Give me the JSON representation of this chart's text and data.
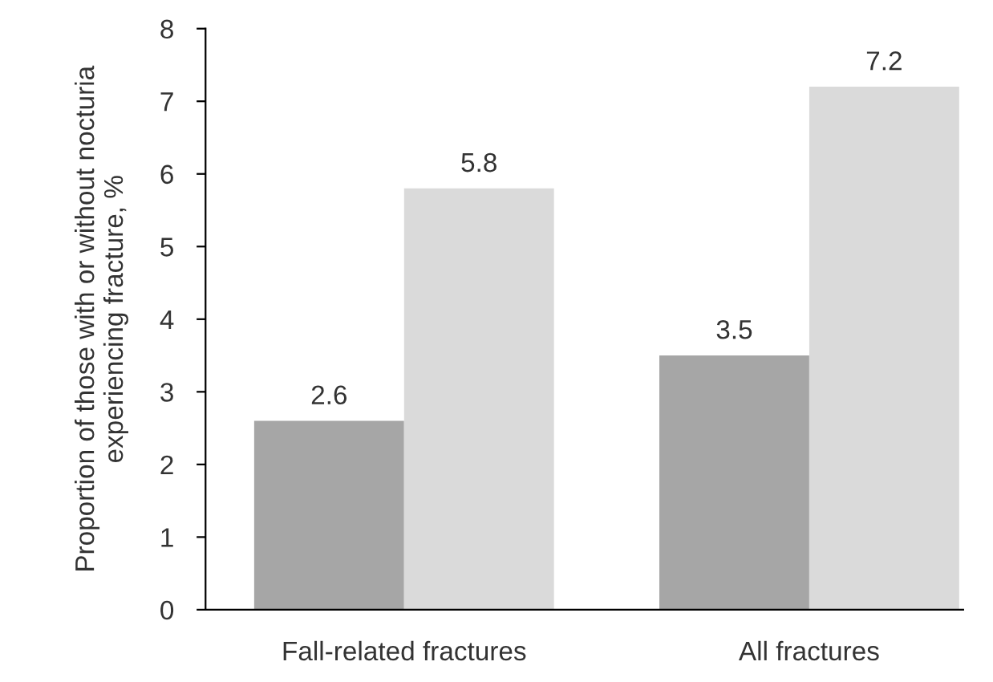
{
  "chart_data": {
    "type": "bar",
    "ylabel": "Proportion of those with or without nocturia\nexperiencing fracture, %",
    "categories": [
      "Fall-related fractures",
      "All fractures"
    ],
    "series": [
      {
        "color": "#a6a6a6",
        "values": [
          2.6,
          3.5
        ]
      },
      {
        "color": "#dadada",
        "values": [
          5.8,
          7.2
        ]
      }
    ],
    "ylim": [
      0,
      8
    ],
    "yticks": [
      0,
      1,
      2,
      3,
      4,
      5,
      6,
      7,
      8
    ],
    "data_labels": true,
    "grid": false,
    "legend": false
  }
}
